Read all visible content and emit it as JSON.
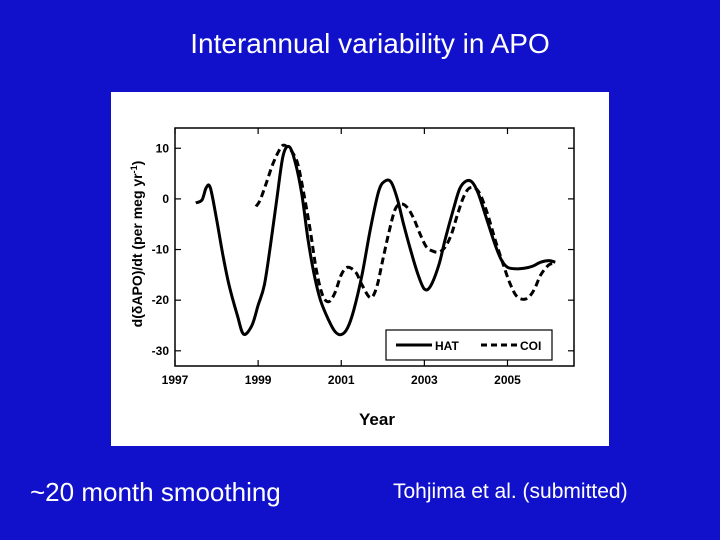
{
  "slide": {
    "title": "Interannual variability in APO",
    "caption_left": "~20 month smoothing",
    "caption_right": "Tohjima et al. (submitted)",
    "background_color": "#1111cc"
  },
  "chart_data": {
    "type": "line",
    "title": "",
    "xlabel": "Year",
    "ylabel_parts": {
      "prefix": "d(",
      "delta": "δ",
      "mid": "APO)/dt (per meg yr",
      "exp": "-1",
      "suffix": ")"
    },
    "xlim": [
      1997,
      2006.6
    ],
    "ylim": [
      -33,
      14
    ],
    "x_ticks": [
      1997,
      1999,
      2001,
      2003,
      2005
    ],
    "x_tick_labels": [
      "1997",
      "1999",
      "2001",
      "2003",
      "2005"
    ],
    "y_ticks": [
      10,
      0,
      -10,
      -20,
      -30
    ],
    "y_tick_labels": [
      "10",
      "0",
      "-10",
      "-20",
      "-30"
    ],
    "legend_position": "bottom-right",
    "series": [
      {
        "name": "HAT",
        "style": "solid",
        "x": [
          1997.5,
          1997.65,
          1997.75,
          1997.85,
          1998.0,
          1998.15,
          1998.3,
          1998.5,
          1998.65,
          1998.85,
          1999.0,
          1999.15,
          1999.3,
          1999.45,
          1999.6,
          1999.75,
          1999.9,
          2000.05,
          2000.2,
          2000.35,
          2000.5,
          2000.7,
          2000.85,
          2001.0,
          2001.15,
          2001.3,
          2001.5,
          2001.7,
          2001.9,
          2002.05,
          2002.2,
          2002.35,
          2002.5,
          2002.7,
          2002.85,
          2003.0,
          2003.15,
          2003.35,
          2003.5,
          2003.7,
          2003.85,
          2004.0,
          2004.15,
          2004.3,
          2004.5,
          2004.7,
          2004.85,
          2005.0,
          2005.2,
          2005.4,
          2005.6,
          2005.8,
          2006.0,
          2006.15
        ],
        "values": [
          -0.8,
          -0.2,
          2.2,
          2.2,
          -4,
          -11,
          -17,
          -23,
          -26.7,
          -25,
          -21,
          -17,
          -9,
          0,
          8.5,
          10.3,
          7,
          1,
          -8,
          -15,
          -20,
          -24,
          -26.2,
          -26.8,
          -25.5,
          -22,
          -15,
          -6,
          1.5,
          3.5,
          3.3,
          0,
          -5,
          -11,
          -15,
          -17.8,
          -17.2,
          -13,
          -8,
          -2,
          2,
          3.5,
          3.3,
          1,
          -4,
          -9,
          -12,
          -13.5,
          -13.8,
          -13.7,
          -13.3,
          -12.5,
          -12.2,
          -12.5
        ]
      },
      {
        "name": "COI",
        "style": "dashed",
        "x": [
          1998.95,
          1999.05,
          1999.2,
          1999.35,
          1999.5,
          1999.6,
          1999.7,
          1999.8,
          1999.95,
          2000.1,
          2000.25,
          2000.4,
          2000.55,
          2000.7,
          2000.85,
          2001.0,
          2001.15,
          2001.35,
          2001.5,
          2001.7,
          2001.85,
          2002.0,
          2002.15,
          2002.3,
          2002.45,
          2002.6,
          2002.75,
          2002.9,
          2003.05,
          2003.2,
          2003.35,
          2003.5,
          2003.65,
          2003.8,
          2003.95,
          2004.1,
          2004.3,
          2004.5,
          2004.7,
          2004.9,
          2005.05,
          2005.2,
          2005.35,
          2005.5,
          2005.65,
          2005.8,
          2006.0,
          2006.15
        ],
        "values": [
          -1.5,
          -0.2,
          3.2,
          6.8,
          9.5,
          10.6,
          10.3,
          9.5,
          7,
          1,
          -6,
          -14,
          -19,
          -20.3,
          -18.5,
          -15,
          -13.5,
          -14.5,
          -17,
          -19.5,
          -17.5,
          -12,
          -6.5,
          -2,
          -1,
          -1.8,
          -4,
          -7,
          -9.5,
          -10.3,
          -10.5,
          -9.5,
          -7,
          -3,
          0.5,
          2.2,
          1.5,
          -2.5,
          -8,
          -13,
          -16.5,
          -19,
          -19.8,
          -19.5,
          -17.8,
          -15,
          -13,
          -12.8
        ]
      }
    ]
  }
}
